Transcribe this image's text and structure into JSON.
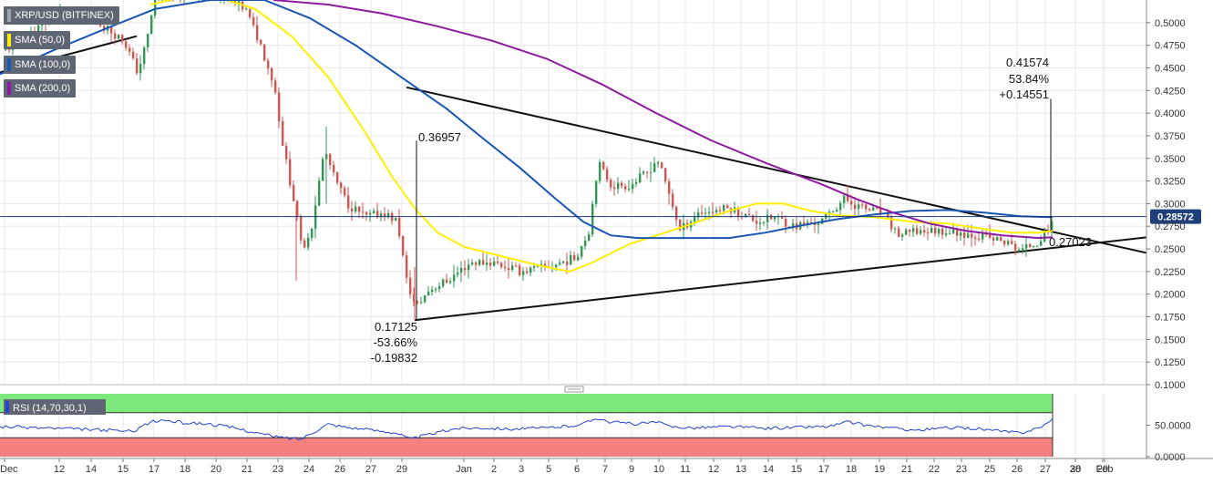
{
  "chart_data": [
    {
      "type": "candlestick",
      "symbol": "XRP/USD (BITFINEX)",
      "y_ticks": [
        "0.5000",
        "0.4750",
        "0.4500",
        "0.4250",
        "0.4000",
        "0.3750",
        "0.3500",
        "0.3250",
        "0.3000",
        "0.2750",
        "0.2500",
        "0.2250",
        "0.2000",
        "0.1750",
        "0.1500",
        "0.1250",
        "0.1000"
      ],
      "ylim": [
        0.1,
        0.525
      ],
      "x_ticks": [
        "Dec",
        "12",
        "14",
        "15",
        "17",
        "18",
        "20",
        "21",
        "23",
        "24",
        "26",
        "27",
        "29",
        "30",
        "Jan",
        "2",
        "3",
        "5",
        "6",
        "7",
        "9",
        "10",
        "11",
        "12",
        "13",
        "14",
        "15",
        "17",
        "18",
        "19",
        "21",
        "22",
        "23",
        "25",
        "26",
        "27",
        "28",
        "29",
        "30",
        "Feb"
      ],
      "current_price": "0.28572",
      "current_price_value": 0.28572,
      "indicators": [
        {
          "name": "SMA (50,0)",
          "color": "#ffee00"
        },
        {
          "name": "SMA (100,0)",
          "color": "#1a56b4"
        },
        {
          "name": "SMA (200,0)",
          "color": "#8e1aa0"
        }
      ],
      "annotations": {
        "low": {
          "price": "0.17125",
          "percent": "-53.66%",
          "change": "-0.19832"
        },
        "high_dec": {
          "price": "0.36957"
        },
        "high_jan": {
          "price": "0.41574",
          "percent": "53.84%",
          "change": "+0.14551"
        },
        "last_low": {
          "price": "0.27023"
        }
      },
      "colors": {
        "up": "#2e9a54",
        "down": "#d9534f",
        "trendline": "#111111",
        "price_line": "#1a3a7a",
        "grid": "#e8e8e8"
      }
    },
    {
      "type": "line",
      "title": "RSI (14,70,30,1)",
      "y_ticks": [
        "50.0000",
        "0.0000"
      ],
      "ylim": [
        0,
        100
      ],
      "bands": {
        "overbought": 70,
        "oversold": 30
      },
      "colors": {
        "line": "#2244cc",
        "overbought": "#7de87d",
        "oversold": "#f58080"
      }
    }
  ]
}
